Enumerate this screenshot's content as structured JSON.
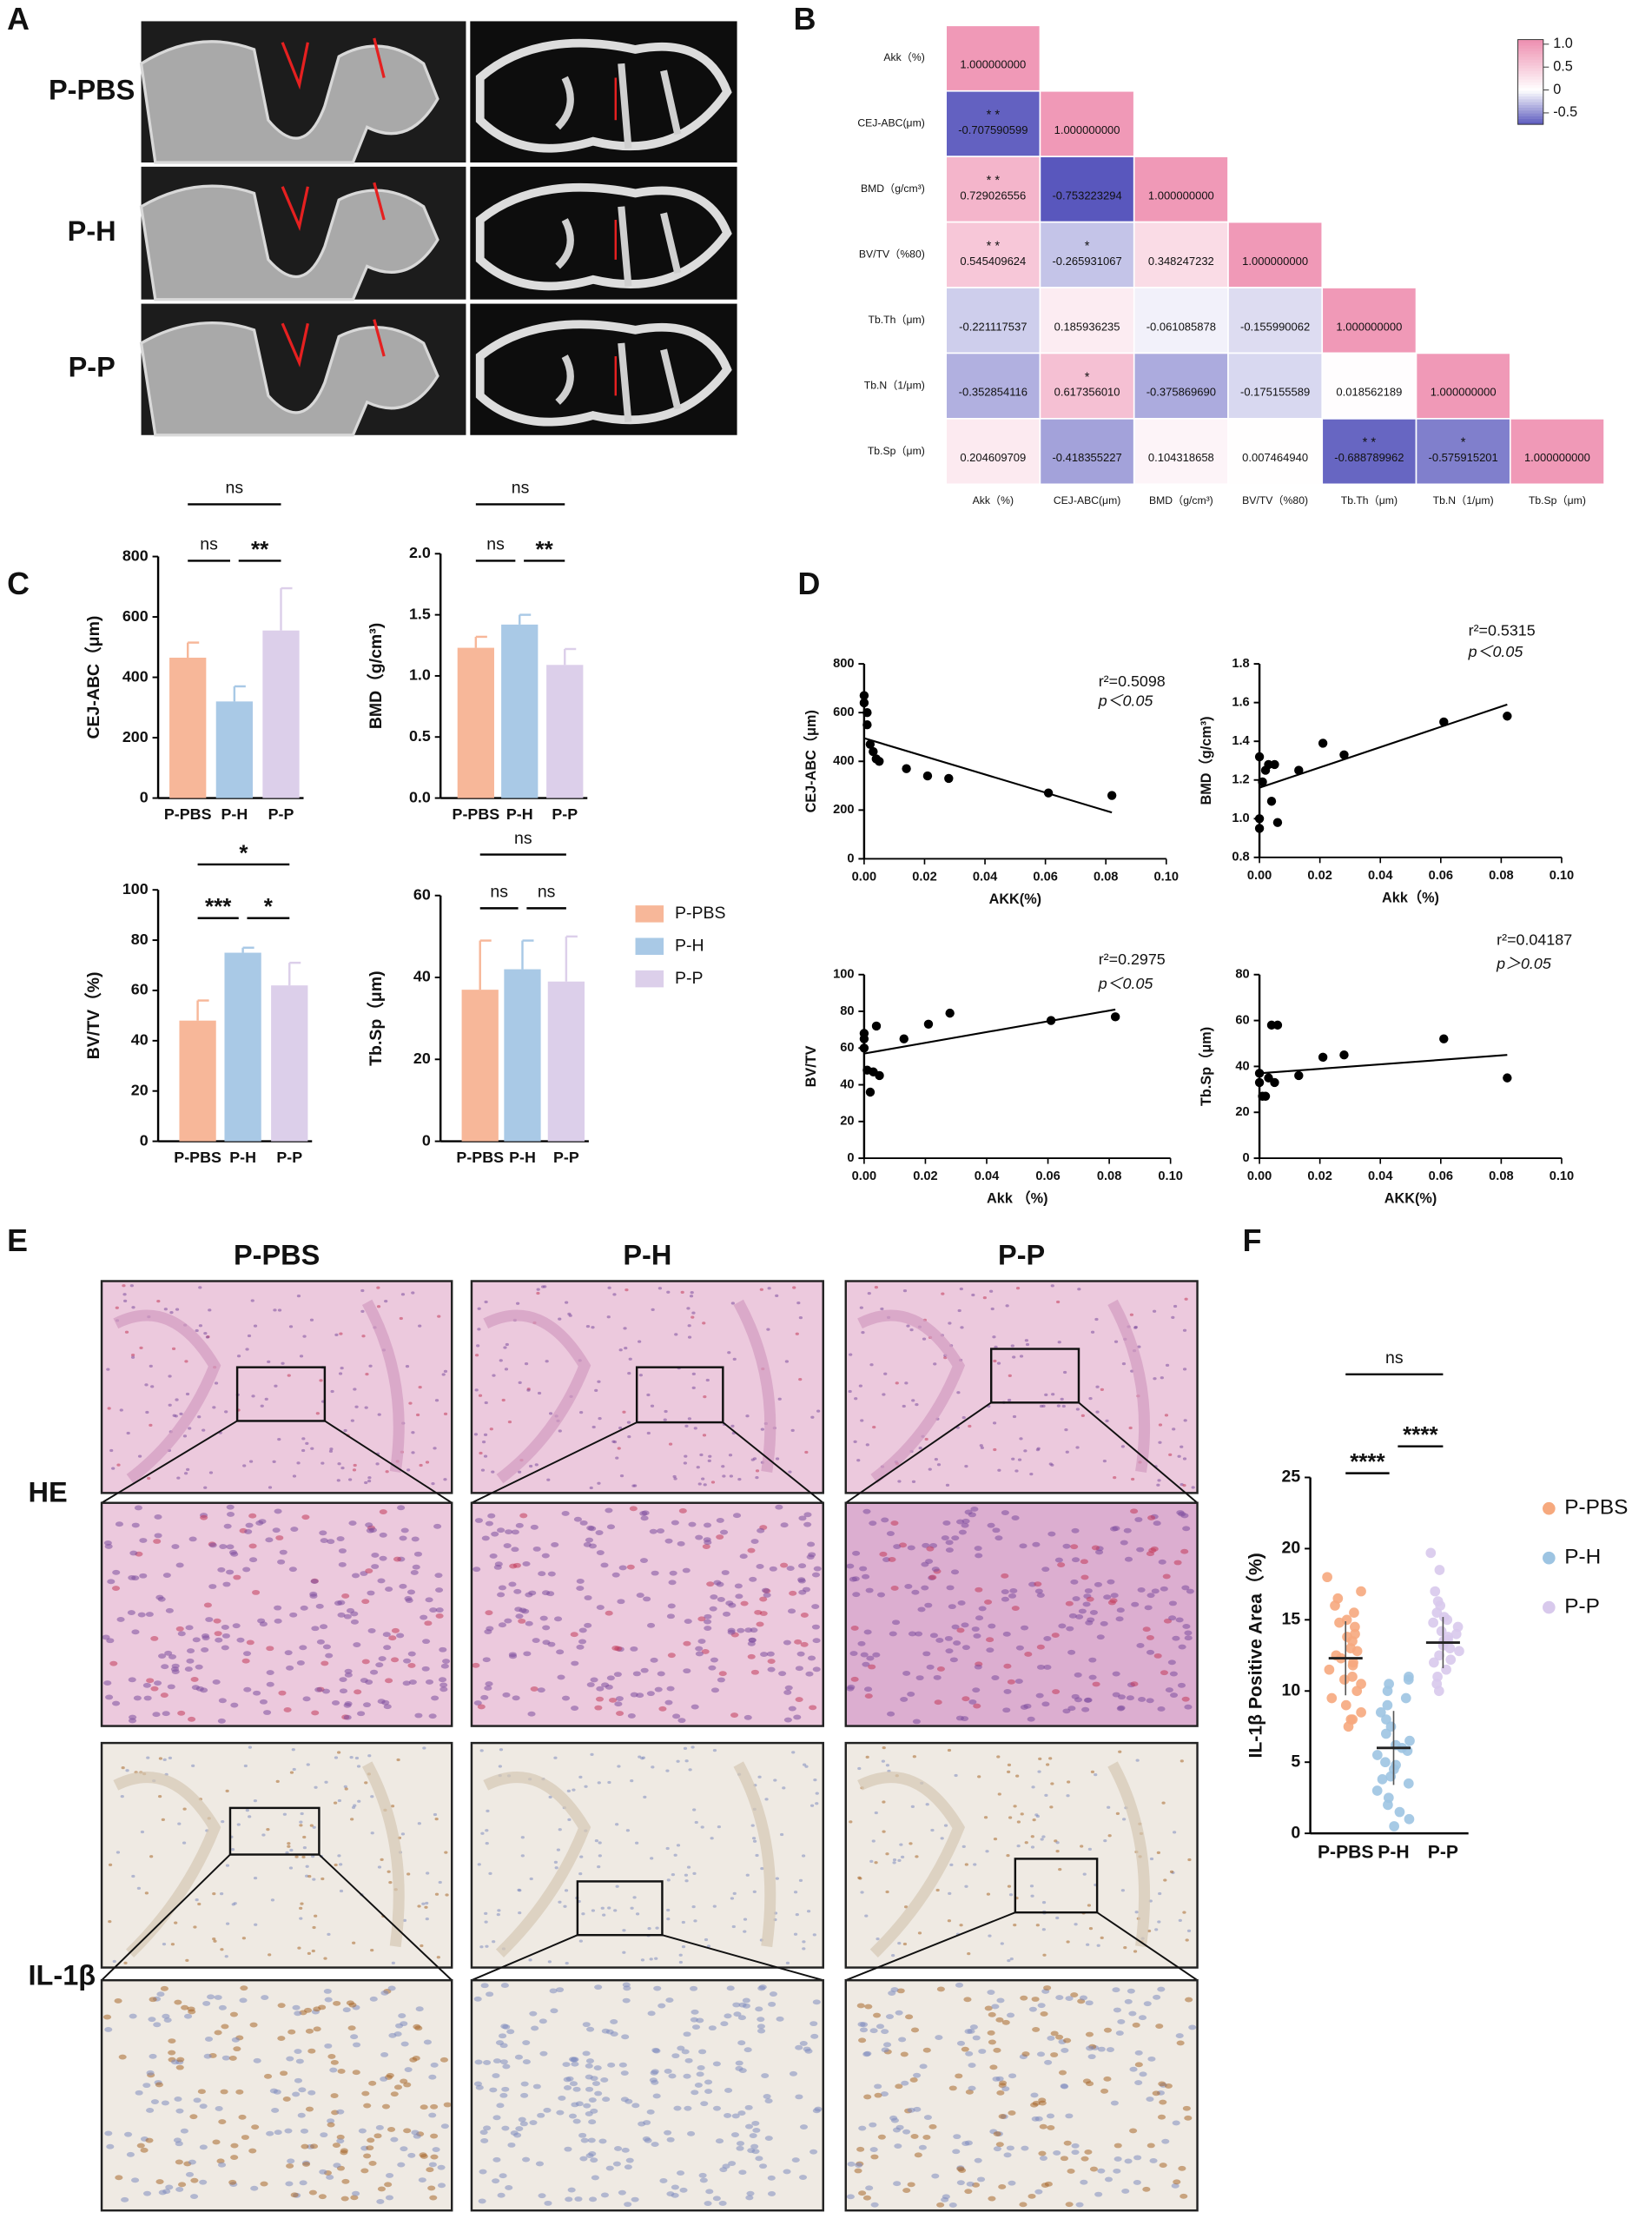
{
  "panel_labels": [
    "A",
    "B",
    "C",
    "D",
    "E",
    "F"
  ],
  "panel_a": {
    "row_labels": [
      "P-PBS",
      "P-H",
      "P-P"
    ]
  },
  "panel_e": {
    "column_labels": [
      "P-PBS",
      "P-H",
      "P-P"
    ],
    "row_labels": [
      "HE",
      "IL-1β"
    ]
  },
  "chart_data": [
    {
      "type": "heatmap",
      "rows": [
        "Akk（%)",
        "CEJ-ABC(μm)",
        "BMD（g/cm³)",
        "BV/TV（%80)",
        "Tb.Th（μm)",
        "Tb.N（1/μm)",
        "Tb.Sp（μm)"
      ],
      "columns": [
        "Akk（%)",
        "CEJ-ABC(μm)",
        "BMD（g/cm³)",
        "BV/TV（%80)",
        "Tb.Th（μm)",
        "Tb.N（1/μm)",
        "Tb.Sp（μm)"
      ],
      "values": [
        [
          1
        ],
        [
          -0.707590599,
          1
        ],
        [
          0.729026556,
          -0.753223294,
          1
        ],
        [
          0.545409624,
          -0.265931067,
          0.348247232,
          1
        ],
        [
          -0.221117537,
          0.185936235,
          -0.061085878,
          -0.155990062,
          1
        ],
        [
          -0.352854116,
          0.61735601,
          -0.37586969,
          -0.175155589,
          0.018562189,
          1
        ],
        [
          0.204609709,
          -0.418355227,
          0.104318658,
          0.00746494,
          -0.688789962,
          -0.575915201,
          1
        ]
      ],
      "value_labels": [
        [
          "1.000000000"
        ],
        [
          "-0.707590599",
          "1.000000000"
        ],
        [
          "0.729026556",
          "-0.753223294",
          "1.000000000"
        ],
        [
          "0.545409624",
          "-0.265931067",
          "0.348247232",
          "1.000000000"
        ],
        [
          "-0.221117537",
          "0.185936235",
          "-0.061085878",
          "-0.155990062",
          "1.000000000"
        ],
        [
          "-0.352854116",
          "0.617356010",
          "-0.375869690",
          "-0.175155589",
          "0.018562189",
          "1.000000000"
        ],
        [
          "0.204609709",
          "-0.418355227",
          "0.104318658",
          "0.007464940",
          "-0.688789962",
          "-0.575915201",
          "1.000000000"
        ]
      ],
      "stars": [
        [
          null
        ],
        [
          "* *",
          null
        ],
        [
          "* *",
          null,
          null
        ],
        [
          "* *",
          "*",
          null,
          null
        ],
        [
          null,
          null,
          null,
          null,
          null
        ],
        [
          null,
          "*",
          null,
          null,
          null,
          null
        ],
        [
          null,
          null,
          null,
          null,
          "* *",
          "*",
          null
        ]
      ],
      "colors": {
        "low": "#5a58bd",
        "mid": "#ffffff",
        "high": "#ee8fb0"
      },
      "clim": [
        -0.75,
        1.1
      ],
      "colorbar_ticks": [
        {
          "value": 1,
          "label": "1.0"
        },
        0.5,
        0,
        -0.5
      ]
    },
    {
      "type": "bar",
      "categories": [
        "P-PBS",
        "P-H",
        "P-P"
      ],
      "colors": [
        "#f7b799",
        "#a9c9e6",
        "#dccfea"
      ],
      "values": [
        465,
        320,
        555
      ],
      "errors": [
        50,
        50,
        140
      ],
      "ylabel": "CEJ-ABC（μm)",
      "ylim": [
        0,
        800
      ],
      "yticks": [
        0,
        200,
        400,
        600,
        800
      ],
      "significance": [
        "ns",
        "**",
        "ns"
      ]
    },
    {
      "type": "bar",
      "categories": [
        "P-PBS",
        "P-H",
        "P-P"
      ],
      "colors": [
        "#f7b799",
        "#a9c9e6",
        "#dccfea"
      ],
      "values": [
        1.23,
        1.42,
        1.09
      ],
      "errors": [
        0.09,
        0.08,
        0.13
      ],
      "ylabel": "BMD（g/cm³)",
      "ylim": [
        0,
        2
      ],
      "yticks": [
        {
          "value": 0,
          "label": "0.0"
        },
        0.5,
        {
          "value": 1,
          "label": "1.0"
        },
        1.5,
        {
          "value": 2,
          "label": "2.0"
        }
      ],
      "significance": [
        "ns",
        "**",
        "ns"
      ]
    },
    {
      "type": "bar",
      "categories": [
        "P-PBS",
        "P-H",
        "P-P"
      ],
      "colors": [
        "#f7b799",
        "#a9c9e6",
        "#dccfea"
      ],
      "values": [
        48,
        75,
        62
      ],
      "errors": [
        8,
        2,
        9
      ],
      "ylabel": "BV/TV（%)",
      "ylim": [
        0,
        100
      ],
      "yticks": [
        0,
        20,
        40,
        60,
        80,
        100
      ],
      "significance": [
        "***",
        "*",
        "*"
      ]
    },
    {
      "type": "bar",
      "categories": [
        "P-PBS",
        "P-H",
        "P-P"
      ],
      "colors": [
        "#f7b799",
        "#a9c9e6",
        "#dccfea"
      ],
      "values": [
        37,
        42,
        39
      ],
      "errors": [
        12,
        7,
        11
      ],
      "ylabel": "Tb.Sp（μm)",
      "ylim": [
        0,
        60
      ],
      "yticks": [
        0,
        20,
        40,
        60
      ],
      "significance": [
        "ns",
        "ns",
        "ns"
      ],
      "legend": "right"
    },
    {
      "type": "scatter",
      "xlabel": "AKK(%)",
      "ylabel": "CEJ-ABC（μm)",
      "color": "#000000",
      "x": [
        0,
        0,
        0.001,
        0.001,
        0.002,
        0.003,
        0.004,
        0.005,
        0.014,
        0.021,
        0.028,
        0.061,
        0.082
      ],
      "values": [
        670,
        640,
        600,
        550,
        470,
        440,
        410,
        400,
        370,
        340,
        330,
        270,
        260
      ],
      "trendline": {
        "x": [
          0,
          0.082
        ],
        "values": [
          495,
          190
        ]
      },
      "annotations": [
        "r²=0.5098",
        "p＜0.05"
      ],
      "xlim": [
        0,
        0.1
      ],
      "xticks": [
        {
          "value": 0,
          "label": "0.00"
        },
        0.02,
        0.04,
        0.06,
        0.08,
        {
          "value": 0.1,
          "label": "0.10"
        }
      ],
      "ylim": [
        0,
        800
      ],
      "yticks": [
        0,
        200,
        400,
        600,
        800
      ]
    },
    {
      "type": "scatter",
      "xlabel": "Akk（%)",
      "ylabel": "BMD（g/cm³)",
      "color": "#000000",
      "x": [
        0,
        0,
        0,
        0.001,
        0.002,
        0.003,
        0.004,
        0.005,
        0.006,
        0.013,
        0.021,
        0.028,
        0.061,
        0.082
      ],
      "values": [
        1.32,
        1.0,
        0.95,
        1.19,
        1.25,
        1.28,
        1.09,
        1.28,
        0.98,
        1.25,
        1.39,
        1.33,
        1.5,
        1.53
      ],
      "trendline": {
        "x": [
          0,
          0.082
        ],
        "values": [
          1.16,
          1.59
        ]
      },
      "annotations": [
        "r²=0.5315",
        "p＜0.05"
      ],
      "xlim": [
        0,
        0.1
      ],
      "xticks": [
        {
          "value": 0,
          "label": "0.00"
        },
        0.02,
        0.04,
        0.06,
        0.08,
        {
          "value": 0.1,
          "label": "0.10"
        }
      ],
      "ylim": [
        0.8,
        1.8
      ],
      "yticks": [
        0.8,
        {
          "value": 1,
          "label": "1.0"
        },
        1.2,
        1.4,
        1.6,
        1.8
      ]
    },
    {
      "type": "scatter",
      "xlabel": "Akk （%)",
      "ylabel": "BV/TV",
      "color": "#000000",
      "x": [
        0,
        0,
        0,
        0.001,
        0.002,
        0.003,
        0.004,
        0.005,
        0.013,
        0.021,
        0.028,
        0.061,
        0.082
      ],
      "values": [
        68,
        65,
        60,
        48,
        36,
        47,
        72,
        45,
        65,
        73,
        79,
        75,
        77
      ],
      "trendline": {
        "x": [
          0,
          0.082
        ],
        "values": [
          57,
          81
        ]
      },
      "annotations": [
        "r²=0.2975",
        "p＜0.05"
      ],
      "xlim": [
        0,
        0.1
      ],
      "xticks": [
        {
          "value": 0,
          "label": "0.00"
        },
        0.02,
        0.04,
        0.06,
        0.08,
        {
          "value": 0.1,
          "label": "0.10"
        }
      ],
      "ylim": [
        0,
        100
      ],
      "yticks": [
        0,
        20,
        40,
        60,
        80,
        100
      ]
    },
    {
      "type": "scatter",
      "xlabel": "AKK(%)",
      "ylabel": "Tb.Sp（μm)",
      "color": "#000000",
      "x": [
        0,
        0,
        0.001,
        0.002,
        0.003,
        0.004,
        0.005,
        0.006,
        0.013,
        0.021,
        0.028,
        0.061,
        0.082
      ],
      "values": [
        37,
        33,
        27,
        27,
        35,
        58,
        33,
        58,
        36,
        44,
        45,
        52,
        35
      ],
      "trendline": {
        "x": [
          0,
          0.082
        ],
        "values": [
          37,
          45
        ]
      },
      "annotations": [
        "r²=0.04187",
        "p＞0.05"
      ],
      "xlim": [
        0,
        0.1
      ],
      "xticks": [
        {
          "value": 0,
          "label": "0.00"
        },
        0.02,
        0.04,
        0.06,
        0.08,
        {
          "value": 0.1,
          "label": "0.10"
        }
      ],
      "ylim": [
        0,
        80
      ],
      "yticks": [
        0,
        20,
        40,
        60,
        80
      ]
    },
    {
      "type": "strip",
      "ylabel": "IL-1β Positive Area（%)",
      "categories": [
        "P-PBS",
        "P-H",
        "P-P"
      ],
      "series": [
        {
          "name": "P-PBS",
          "color": "#f6a97e",
          "mean": 12.3,
          "sd": 2.6,
          "values": [
            18,
            17,
            16.5,
            16,
            15.5,
            15,
            14.8,
            14.5,
            14,
            13.8,
            13.5,
            13,
            12.8,
            12.5,
            12.3,
            12,
            11.8,
            11.5,
            11,
            10.8,
            10.5,
            10,
            9.5,
            9,
            8.5,
            8,
            8,
            7.5
          ]
        },
        {
          "name": "P-H",
          "color": "#9dc4e2",
          "mean": 6.0,
          "sd": 2.6,
          "values": [
            11,
            10.8,
            10.5,
            10,
            9.5,
            9,
            8.5,
            8,
            7.5,
            7,
            6.5,
            6.2,
            6,
            5.8,
            5.5,
            5,
            4.8,
            4.5,
            4,
            3.8,
            3.5,
            3,
            2.5,
            2,
            1.5,
            1,
            0.5
          ]
        },
        {
          "name": "P-P",
          "color": "#d8c9ec",
          "mean": 13.4,
          "sd": 1.8,
          "values": [
            19.7,
            18.5,
            17,
            16.3,
            16,
            15.5,
            15.2,
            15,
            14.8,
            14.5,
            14.2,
            14,
            13.8,
            13.6,
            13.5,
            13.2,
            13,
            12.8,
            12.5,
            12.2,
            12,
            11.5,
            11,
            10.5,
            10
          ]
        }
      ],
      "ylim": [
        0,
        25
      ],
      "yticks": [
        0,
        5,
        10,
        15,
        20,
        25
      ],
      "significance": [
        "****",
        "****",
        "ns"
      ],
      "legend": "right"
    }
  ]
}
